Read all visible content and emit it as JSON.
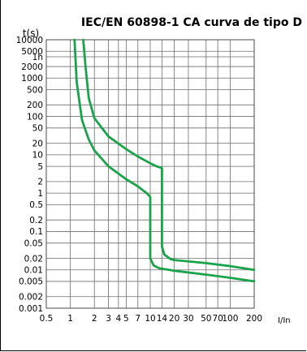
{
  "chart_data": {
    "type": "line",
    "title": "IEC/EN 60898-1 CA curva de tipo D",
    "ylabel": "t(s)",
    "xlabel": "I/In",
    "x_scale": "log",
    "y_scale": "log",
    "xlim": [
      0.5,
      200
    ],
    "ylim": [
      0.001,
      10000
    ],
    "grid": true,
    "line_color": "#1aa34a",
    "x_ticks": [
      {
        "value": 0.5,
        "label": "0.5"
      },
      {
        "value": 1,
        "label": "1"
      },
      {
        "value": 2,
        "label": "2"
      },
      {
        "value": 3,
        "label": "3"
      },
      {
        "value": 4,
        "label": "4"
      },
      {
        "value": 5,
        "label": "5"
      },
      {
        "value": 7,
        "label": "7"
      },
      {
        "value": 10,
        "label": "10"
      },
      {
        "value": 14,
        "label": "14"
      },
      {
        "value": 20,
        "label": "20"
      },
      {
        "value": 30,
        "label": "30"
      },
      {
        "value": 50,
        "label": "50"
      },
      {
        "value": 70,
        "label": "70"
      },
      {
        "value": 100,
        "label": "100"
      },
      {
        "value": 200,
        "label": "200"
      }
    ],
    "y_ticks": [
      {
        "value": 10000,
        "label": "10000"
      },
      {
        "value": 5000,
        "label": "5000"
      },
      {
        "value": 3600,
        "label": "1h"
      },
      {
        "value": 2000,
        "label": "2000"
      },
      {
        "value": 1000,
        "label": "1000"
      },
      {
        "value": 500,
        "label": "500"
      },
      {
        "value": 200,
        "label": "200"
      },
      {
        "value": 100,
        "label": "100"
      },
      {
        "value": 50,
        "label": "50"
      },
      {
        "value": 20,
        "label": "20"
      },
      {
        "value": 10,
        "label": "10"
      },
      {
        "value": 5,
        "label": "5"
      },
      {
        "value": 2,
        "label": "2"
      },
      {
        "value": 1,
        "label": "1"
      },
      {
        "value": 0.5,
        "label": "0.5"
      },
      {
        "value": 0.2,
        "label": "0.2"
      },
      {
        "value": 0.1,
        "label": "0.1"
      },
      {
        "value": 0.05,
        "label": "0.05"
      },
      {
        "value": 0.02,
        "label": "0.02"
      },
      {
        "value": 0.01,
        "label": "0.01"
      },
      {
        "value": 0.005,
        "label": "0.005"
      },
      {
        "value": 0.002,
        "label": "0.002"
      },
      {
        "value": 0.001,
        "label": "0.001"
      }
    ],
    "series": [
      {
        "points": [
          [
            1.13,
            10000
          ],
          [
            1.2,
            800
          ],
          [
            1.4,
            80
          ],
          [
            1.7,
            25
          ],
          [
            2,
            13
          ],
          [
            3,
            5
          ],
          [
            5,
            2.3
          ],
          [
            7,
            1.5
          ],
          [
            9,
            1.0
          ],
          [
            10,
            0.8
          ],
          [
            10,
            0.02
          ],
          [
            11,
            0.013
          ],
          [
            13,
            0.011
          ],
          [
            20,
            0.0095
          ],
          [
            50,
            0.0075
          ],
          [
            100,
            0.0062
          ],
          [
            200,
            0.005
          ]
        ]
      },
      {
        "points": [
          [
            1.45,
            10000
          ],
          [
            1.55,
            2000
          ],
          [
            1.7,
            300
          ],
          [
            2,
            90
          ],
          [
            3,
            30
          ],
          [
            5,
            14
          ],
          [
            7,
            9
          ],
          [
            10,
            6
          ],
          [
            12,
            5
          ],
          [
            14,
            4.5
          ],
          [
            14,
            0.04
          ],
          [
            15,
            0.025
          ],
          [
            18,
            0.019
          ],
          [
            20,
            0.018
          ],
          [
            50,
            0.015
          ],
          [
            100,
            0.0125
          ],
          [
            200,
            0.01
          ]
        ]
      }
    ]
  }
}
